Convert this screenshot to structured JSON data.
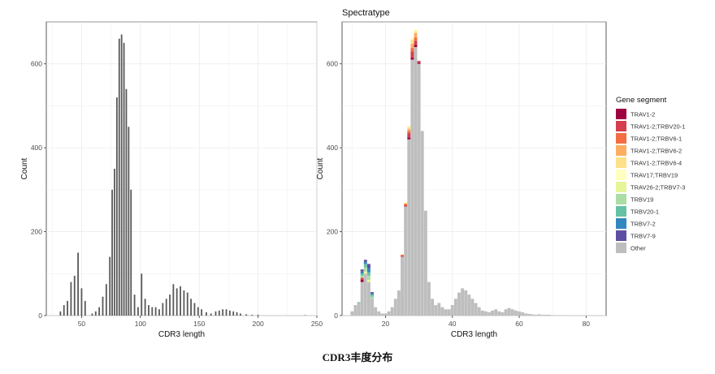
{
  "chart_data": [
    {
      "type": "bar",
      "title": "",
      "xlabel": "CDR3 length",
      "ylabel": "Count",
      "xlim": [
        20,
        250
      ],
      "ylim": [
        0,
        700
      ],
      "xticks": [
        50,
        100,
        150,
        200,
        250
      ],
      "yticks": [
        0,
        200,
        400,
        600
      ],
      "grid": true,
      "x": [
        32,
        35,
        38,
        41,
        44,
        47,
        50,
        53,
        59,
        62,
        65,
        68,
        71,
        74,
        76,
        78,
        80,
        82,
        84,
        86,
        88,
        90,
        92,
        95,
        98,
        101,
        104,
        107,
        110,
        113,
        116,
        119,
        122,
        125,
        128,
        131,
        134,
        137,
        140,
        143,
        146,
        149,
        152,
        156,
        160,
        164,
        167,
        170,
        173,
        176,
        179,
        182,
        185,
        190,
        195,
        200,
        240
      ],
      "values": [
        10,
        25,
        35,
        80,
        95,
        150,
        65,
        35,
        5,
        10,
        20,
        45,
        75,
        140,
        300,
        350,
        520,
        660,
        670,
        650,
        540,
        450,
        300,
        50,
        20,
        100,
        40,
        25,
        20,
        20,
        15,
        30,
        40,
        50,
        75,
        65,
        70,
        60,
        55,
        40,
        30,
        20,
        15,
        8,
        5,
        10,
        12,
        15,
        15,
        12,
        10,
        8,
        5,
        3,
        2,
        2,
        1
      ]
    },
    {
      "type": "bar",
      "title": "Spectratype",
      "xlabel": "CDR3 length",
      "ylabel": "Count",
      "xlim": [
        7,
        86
      ],
      "ylim": [
        0,
        700
      ],
      "xticks": [
        20,
        40,
        60,
        80
      ],
      "yticks": [
        0,
        200,
        400,
        600
      ],
      "grid": true,
      "legend": {
        "title": "Gene segment",
        "position": "right",
        "entries": [
          {
            "name": "TRAV1-2",
            "color": "#9e0142"
          },
          {
            "name": "TRAV1-2;TRBV20-1",
            "color": "#d53e4f"
          },
          {
            "name": "TRAV1-2;TRBV6-1",
            "color": "#f46d43"
          },
          {
            "name": "TRAV1-2;TRBV6-2",
            "color": "#fdae61"
          },
          {
            "name": "TRAV1-2;TRBV6-4",
            "color": "#fee08b"
          },
          {
            "name": "TRAV17;TRBV19",
            "color": "#ffffbf"
          },
          {
            "name": "TRAV26-2;TRBV7-3",
            "color": "#e6f598"
          },
          {
            "name": "TRBV19",
            "color": "#abdda4"
          },
          {
            "name": "TRBV20-1",
            "color": "#66c2a5"
          },
          {
            "name": "TRBV7-2",
            "color": "#3288bd"
          },
          {
            "name": "TRBV7-9",
            "color": "#5e4fa2"
          },
          {
            "name": "Other",
            "color": "#bebebe"
          }
        ]
      },
      "x": [
        10,
        11,
        12,
        13,
        14,
        15,
        16,
        17,
        18,
        19,
        20,
        21,
        22,
        23,
        24,
        25,
        26,
        27,
        28,
        29,
        30,
        31,
        32,
        33,
        34,
        35,
        36,
        37,
        38,
        39,
        40,
        41,
        42,
        43,
        44,
        45,
        46,
        47,
        48,
        49,
        50,
        51,
        52,
        53,
        54,
        55,
        56,
        57,
        58,
        59,
        60,
        61,
        62,
        63,
        64,
        65,
        66,
        67,
        68,
        69,
        70,
        71,
        72,
        73,
        74,
        75
      ],
      "series": [
        {
          "name": "Other",
          "values": [
            10,
            25,
            30,
            80,
            100,
            80,
            40,
            20,
            10,
            5,
            5,
            10,
            20,
            40,
            60,
            140,
            260,
            420,
            610,
            640,
            600,
            440,
            250,
            80,
            40,
            25,
            30,
            20,
            15,
            15,
            25,
            40,
            55,
            65,
            60,
            50,
            40,
            30,
            20,
            12,
            10,
            8,
            12,
            15,
            10,
            8,
            15,
            18,
            15,
            12,
            10,
            8,
            5,
            4,
            3,
            2,
            3,
            2,
            2,
            2,
            1,
            1,
            1,
            1,
            1,
            1
          ]
        },
        {
          "name": "TRAV1-2",
          "values": [
            0,
            0,
            0,
            5,
            0,
            0,
            0,
            0,
            0,
            0,
            0,
            0,
            0,
            0,
            0,
            0,
            0,
            5,
            5,
            5,
            3,
            0,
            0,
            0,
            0,
            0,
            0,
            0,
            0,
            0,
            0,
            0,
            0,
            0,
            0,
            0,
            0,
            0,
            0,
            0,
            0,
            0,
            0,
            0,
            0,
            0,
            0,
            0,
            0,
            0,
            0,
            0,
            0,
            0,
            0,
            0,
            0,
            0,
            0,
            0,
            0,
            0,
            0,
            0,
            0,
            0
          ]
        },
        {
          "name": "TRAV1-2;TRBV20-1",
          "values": [
            0,
            0,
            0,
            5,
            0,
            0,
            0,
            0,
            0,
            0,
            0,
            0,
            0,
            0,
            0,
            2,
            3,
            10,
            15,
            10,
            4,
            0,
            0,
            0,
            0,
            0,
            0,
            0,
            0,
            0,
            0,
            0,
            0,
            0,
            0,
            0,
            0,
            0,
            0,
            0,
            0,
            0,
            0,
            0,
            0,
            0,
            0,
            0,
            0,
            0,
            0,
            0,
            0,
            0,
            0,
            0,
            0,
            0,
            0,
            0,
            0,
            0,
            0,
            0,
            0,
            0
          ]
        },
        {
          "name": "TRAV1-2;TRBV6-1",
          "values": [
            0,
            0,
            0,
            0,
            0,
            0,
            0,
            0,
            0,
            0,
            0,
            0,
            0,
            0,
            0,
            3,
            3,
            5,
            8,
            8,
            0,
            0,
            0,
            0,
            0,
            0,
            0,
            0,
            0,
            0,
            0,
            0,
            0,
            0,
            0,
            0,
            0,
            0,
            0,
            0,
            0,
            0,
            0,
            0,
            0,
            0,
            0,
            0,
            0,
            0,
            0,
            0,
            0,
            0,
            0,
            0,
            0,
            0,
            0,
            0,
            0,
            0,
            0,
            0,
            0,
            0
          ]
        },
        {
          "name": "TRAV1-2;TRBV6-2",
          "values": [
            0,
            0,
            0,
            0,
            0,
            0,
            0,
            0,
            0,
            0,
            0,
            0,
            0,
            0,
            0,
            0,
            2,
            5,
            10,
            10,
            0,
            0,
            0,
            0,
            0,
            0,
            0,
            0,
            0,
            0,
            0,
            0,
            0,
            0,
            0,
            0,
            0,
            0,
            0,
            0,
            0,
            0,
            0,
            0,
            0,
            0,
            0,
            0,
            0,
            0,
            0,
            0,
            0,
            0,
            0,
            0,
            0,
            0,
            0,
            0,
            0,
            0,
            0,
            0,
            0,
            0
          ]
        },
        {
          "name": "TRAV1-2;TRBV6-4",
          "values": [
            0,
            0,
            0,
            0,
            0,
            0,
            0,
            0,
            0,
            0,
            0,
            0,
            0,
            0,
            0,
            0,
            0,
            5,
            10,
            5,
            0,
            0,
            0,
            0,
            0,
            0,
            0,
            0,
            0,
            0,
            0,
            0,
            0,
            0,
            0,
            0,
            0,
            0,
            0,
            0,
            0,
            0,
            0,
            0,
            0,
            0,
            0,
            0,
            0,
            0,
            0,
            0,
            0,
            0,
            0,
            0,
            0,
            0,
            0,
            0,
            0,
            0,
            0,
            0,
            0,
            0
          ]
        },
        {
          "name": "TRAV17;TRBV19",
          "values": [
            0,
            0,
            0,
            0,
            0,
            0,
            0,
            0,
            0,
            0,
            0,
            0,
            0,
            0,
            0,
            2,
            2,
            3,
            5,
            5,
            0,
            0,
            0,
            0,
            0,
            0,
            0,
            0,
            0,
            0,
            0,
            0,
            0,
            0,
            0,
            0,
            0,
            0,
            0,
            0,
            0,
            0,
            0,
            0,
            0,
            0,
            0,
            0,
            0,
            0,
            0,
            0,
            0,
            0,
            0,
            0,
            0,
            0,
            0,
            0,
            0,
            0,
            0,
            0,
            0,
            0
          ]
        },
        {
          "name": "TRAV26-2;TRBV7-3",
          "values": [
            0,
            0,
            0,
            0,
            5,
            5,
            0,
            0,
            0,
            0,
            0,
            0,
            0,
            0,
            0,
            0,
            0,
            0,
            0,
            0,
            0,
            0,
            0,
            0,
            0,
            0,
            0,
            0,
            0,
            0,
            0,
            0,
            0,
            0,
            0,
            0,
            0,
            0,
            0,
            0,
            0,
            0,
            0,
            0,
            0,
            0,
            0,
            0,
            0,
            0,
            0,
            0,
            0,
            0,
            0,
            0,
            0,
            0,
            0,
            0,
            0,
            0,
            0,
            0,
            0,
            0
          ]
        },
        {
          "name": "TRBV19",
          "values": [
            0,
            0,
            0,
            5,
            10,
            10,
            5,
            0,
            0,
            0,
            0,
            0,
            0,
            0,
            0,
            0,
            0,
            0,
            0,
            0,
            0,
            0,
            0,
            0,
            0,
            0,
            0,
            0,
            0,
            0,
            0,
            0,
            0,
            0,
            0,
            0,
            0,
            0,
            0,
            0,
            0,
            0,
            0,
            0,
            0,
            0,
            0,
            0,
            0,
            0,
            0,
            0,
            0,
            0,
            0,
            0,
            0,
            0,
            0,
            0,
            0,
            0,
            0,
            0,
            0,
            0
          ]
        },
        {
          "name": "TRBV20-1",
          "values": [
            0,
            0,
            2,
            5,
            8,
            8,
            5,
            0,
            0,
            0,
            0,
            0,
            0,
            0,
            0,
            0,
            0,
            0,
            0,
            0,
            0,
            0,
            0,
            0,
            0,
            0,
            0,
            0,
            0,
            0,
            0,
            0,
            0,
            0,
            0,
            0,
            0,
            0,
            0,
            0,
            0,
            0,
            0,
            0,
            0,
            0,
            0,
            0,
            0,
            0,
            0,
            0,
            0,
            0,
            0,
            0,
            0,
            0,
            0,
            0,
            0,
            0,
            0,
            0,
            0,
            0
          ]
        },
        {
          "name": "TRBV7-2",
          "values": [
            0,
            0,
            0,
            5,
            5,
            10,
            3,
            0,
            0,
            0,
            0,
            0,
            0,
            0,
            0,
            0,
            0,
            0,
            0,
            0,
            0,
            0,
            0,
            0,
            0,
            0,
            0,
            0,
            0,
            0,
            0,
            0,
            0,
            0,
            0,
            0,
            0,
            0,
            0,
            0,
            0,
            0,
            0,
            0,
            0,
            0,
            0,
            0,
            0,
            0,
            0,
            0,
            0,
            0,
            0,
            0,
            0,
            0,
            0,
            0,
            0,
            0,
            0,
            0,
            0,
            0
          ]
        },
        {
          "name": "TRBV7-9",
          "values": [
            0,
            0,
            0,
            5,
            5,
            10,
            3,
            0,
            0,
            0,
            0,
            0,
            0,
            0,
            0,
            0,
            0,
            0,
            0,
            0,
            0,
            0,
            0,
            0,
            0,
            0,
            0,
            0,
            0,
            0,
            0,
            0,
            0,
            0,
            0,
            0,
            0,
            0,
            0,
            0,
            0,
            0,
            0,
            0,
            0,
            0,
            0,
            0,
            0,
            0,
            0,
            0,
            0,
            0,
            0,
            0,
            0,
            0,
            0,
            0,
            0,
            0,
            0,
            0,
            0,
            0
          ]
        }
      ]
    }
  ],
  "caption": "CDR3丰度分布"
}
